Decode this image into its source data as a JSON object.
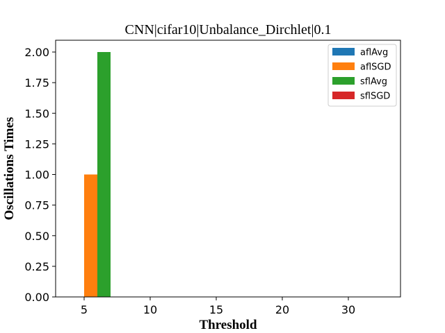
{
  "chart_data": {
    "type": "bar",
    "title": "CNN|cifar10|Unbalance_Dirchlet|0.1",
    "xlabel": "Threshold",
    "ylabel": "Oscillations Times",
    "categories": [
      "5",
      "10",
      "15",
      "20",
      "30"
    ],
    "series": [
      {
        "name": "aflAvg",
        "color": "#1f77b4",
        "values": [
          0,
          0,
          0,
          0,
          0
        ]
      },
      {
        "name": "aflSGD",
        "color": "#ff7f0e",
        "values": [
          1,
          0,
          0,
          0,
          0
        ]
      },
      {
        "name": "sflAvg",
        "color": "#2ca02c",
        "values": [
          2,
          0,
          0,
          0,
          0
        ]
      },
      {
        "name": "sflSGD",
        "color": "#d62728",
        "values": [
          0,
          0,
          0,
          0,
          0
        ]
      }
    ],
    "ylim": [
      0,
      2.0
    ],
    "yticks": [
      "0.00",
      "0.25",
      "0.50",
      "0.75",
      "1.00",
      "1.25",
      "1.50",
      "1.75",
      "2.00"
    ],
    "legend": "top-right",
    "grid": false
  }
}
